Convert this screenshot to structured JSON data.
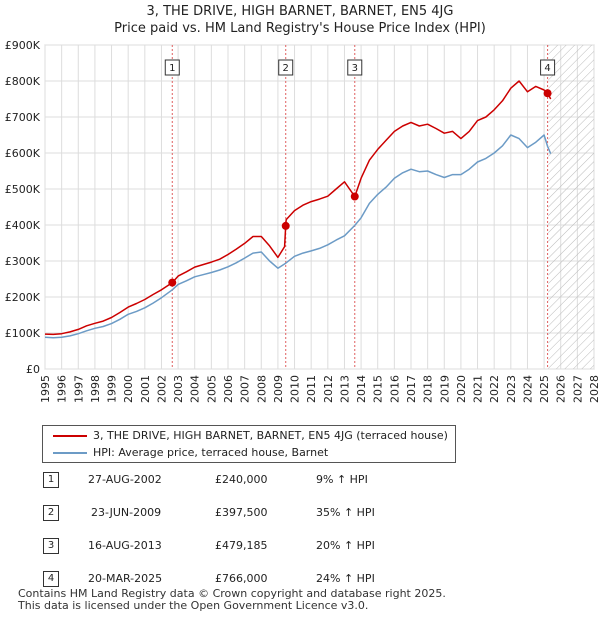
{
  "title_line1": "3, THE DRIVE, HIGH BARNET, BARNET, EN5 4JG",
  "title_line2": "Price paid vs. HM Land Registry's House Price Index (HPI)",
  "colors": {
    "property": "#cc0000",
    "hpi": "#6c9bc6",
    "grid": "#dddddd",
    "marker": "#cc0000",
    "vline": "#e06060"
  },
  "chart_data": {
    "type": "line",
    "xlim": [
      1995,
      2028
    ],
    "ylim": [
      0,
      900000
    ],
    "y_ticks": [
      {
        "value": 0,
        "label": "£0"
      },
      {
        "value": 100000,
        "label": "£100K"
      },
      {
        "value": 200000,
        "label": "£200K"
      },
      {
        "value": 300000,
        "label": "£300K"
      },
      {
        "value": 400000,
        "label": "£400K"
      },
      {
        "value": 500000,
        "label": "£500K"
      },
      {
        "value": 600000,
        "label": "£600K"
      },
      {
        "value": 700000,
        "label": "£700K"
      },
      {
        "value": 800000,
        "label": "£800K"
      },
      {
        "value": 900000,
        "label": "£900K"
      }
    ],
    "x_ticks": [
      "1995",
      "1996",
      "1997",
      "1998",
      "1999",
      "2000",
      "2001",
      "2002",
      "2003",
      "2004",
      "2005",
      "2006",
      "2007",
      "2008",
      "2009",
      "2010",
      "2011",
      "2012",
      "2013",
      "2014",
      "2015",
      "2016",
      "2017",
      "2018",
      "2019",
      "2020",
      "2021",
      "2022",
      "2023",
      "2024",
      "2025",
      "2026",
      "2027",
      "2028"
    ],
    "forecast_from": 2025.25,
    "series": [
      {
        "name": "3, THE DRIVE, HIGH BARNET, BARNET, EN5 4JG (terraced house)",
        "color": "#cc0000",
        "x": [
          1995.0,
          1995.5,
          1996.0,
          1996.5,
          1997.0,
          1997.5,
          1998.0,
          1998.5,
          1999.0,
          1999.5,
          2000.0,
          2000.5,
          2001.0,
          2001.5,
          2002.0,
          2002.65,
          2003.0,
          2003.5,
          2004.0,
          2004.5,
          2005.0,
          2005.5,
          2006.0,
          2006.5,
          2007.0,
          2007.5,
          2008.0,
          2008.5,
          2009.0,
          2009.4,
          2009.47,
          2009.5,
          2010.0,
          2010.5,
          2011.0,
          2011.5,
          2012.0,
          2012.5,
          2013.0,
          2013.62,
          2014.0,
          2014.5,
          2015.0,
          2015.5,
          2016.0,
          2016.5,
          2017.0,
          2017.5,
          2018.0,
          2018.5,
          2019.0,
          2019.5,
          2020.0,
          2020.5,
          2021.0,
          2021.5,
          2022.0,
          2022.5,
          2023.0,
          2023.5,
          2024.0,
          2024.5,
          2025.0,
          2025.21,
          2025.4
        ],
        "y": [
          97000,
          96000,
          98000,
          103000,
          110000,
          120000,
          127000,
          133000,
          143000,
          157000,
          172000,
          182000,
          193000,
          207000,
          220000,
          240000,
          258000,
          270000,
          283000,
          290000,
          297000,
          305000,
          318000,
          333000,
          349000,
          368000,
          368000,
          342000,
          310000,
          340000,
          397500,
          415000,
          440000,
          455000,
          465000,
          472000,
          480000,
          500000,
          520000,
          479185,
          530000,
          580000,
          610000,
          635000,
          660000,
          675000,
          685000,
          675000,
          680000,
          668000,
          655000,
          660000,
          640000,
          660000,
          690000,
          700000,
          720000,
          745000,
          780000,
          800000,
          770000,
          785000,
          775000,
          766000,
          750000
        ]
      },
      {
        "name": "HPI: Average price, terraced house, Barnet",
        "color": "#6c9bc6",
        "x": [
          1995.0,
          1995.5,
          1996.0,
          1996.5,
          1997.0,
          1997.5,
          1998.0,
          1998.5,
          1999.0,
          1999.5,
          2000.0,
          2000.5,
          2001.0,
          2001.5,
          2002.0,
          2002.65,
          2003.0,
          2003.5,
          2004.0,
          2004.5,
          2005.0,
          2005.5,
          2006.0,
          2006.5,
          2007.0,
          2007.5,
          2008.0,
          2008.5,
          2009.0,
          2009.47,
          2010.0,
          2010.5,
          2011.0,
          2011.5,
          2012.0,
          2012.5,
          2013.0,
          2013.62,
          2014.0,
          2014.5,
          2015.0,
          2015.5,
          2016.0,
          2016.5,
          2017.0,
          2017.5,
          2018.0,
          2018.5,
          2019.0,
          2019.5,
          2020.0,
          2020.5,
          2021.0,
          2021.5,
          2022.0,
          2022.5,
          2023.0,
          2023.5,
          2024.0,
          2024.5,
          2025.0,
          2025.21,
          2025.4
        ],
        "y": [
          88000,
          87000,
          88000,
          92000,
          98000,
          106000,
          113000,
          118000,
          126000,
          138000,
          152000,
          160000,
          170000,
          183000,
          198000,
          220000,
          235000,
          245000,
          256000,
          262000,
          268000,
          275000,
          284000,
          295000,
          308000,
          322000,
          325000,
          300000,
          280000,
          294000,
          313000,
          322000,
          328000,
          335000,
          345000,
          358000,
          370000,
          399000,
          420000,
          460000,
          485000,
          505000,
          530000,
          545000,
          555000,
          548000,
          550000,
          540000,
          532000,
          540000,
          540000,
          555000,
          575000,
          585000,
          600000,
          620000,
          650000,
          640000,
          615000,
          630000,
          650000,
          618000,
          598000
        ]
      }
    ],
    "sales": [
      {
        "num": "1",
        "date": "27-AUG-2002",
        "x": 2002.65,
        "price": 240000,
        "price_label": "£240,000",
        "hpi": "9% ↑ HPI"
      },
      {
        "num": "2",
        "date": "23-JUN-2009",
        "x": 2009.47,
        "price": 397500,
        "price_label": "£397,500",
        "hpi": "35% ↑ HPI"
      },
      {
        "num": "3",
        "date": "16-AUG-2013",
        "x": 2013.62,
        "price": 479185,
        "price_label": "£479,185",
        "hpi": "20% ↑ HPI"
      },
      {
        "num": "4",
        "date": "20-MAR-2025",
        "x": 2025.21,
        "price": 766000,
        "price_label": "£766,000",
        "hpi": "24% ↑ HPI"
      }
    ]
  },
  "legend": {
    "property": "3, THE DRIVE, HIGH BARNET, BARNET, EN5 4JG (terraced house)",
    "hpi": "HPI: Average price, terraced house, Barnet"
  },
  "footer": {
    "line1": "Contains HM Land Registry data © Crown copyright and database right 2025.",
    "line2": "This data is licensed under the Open Government Licence v3.0."
  }
}
